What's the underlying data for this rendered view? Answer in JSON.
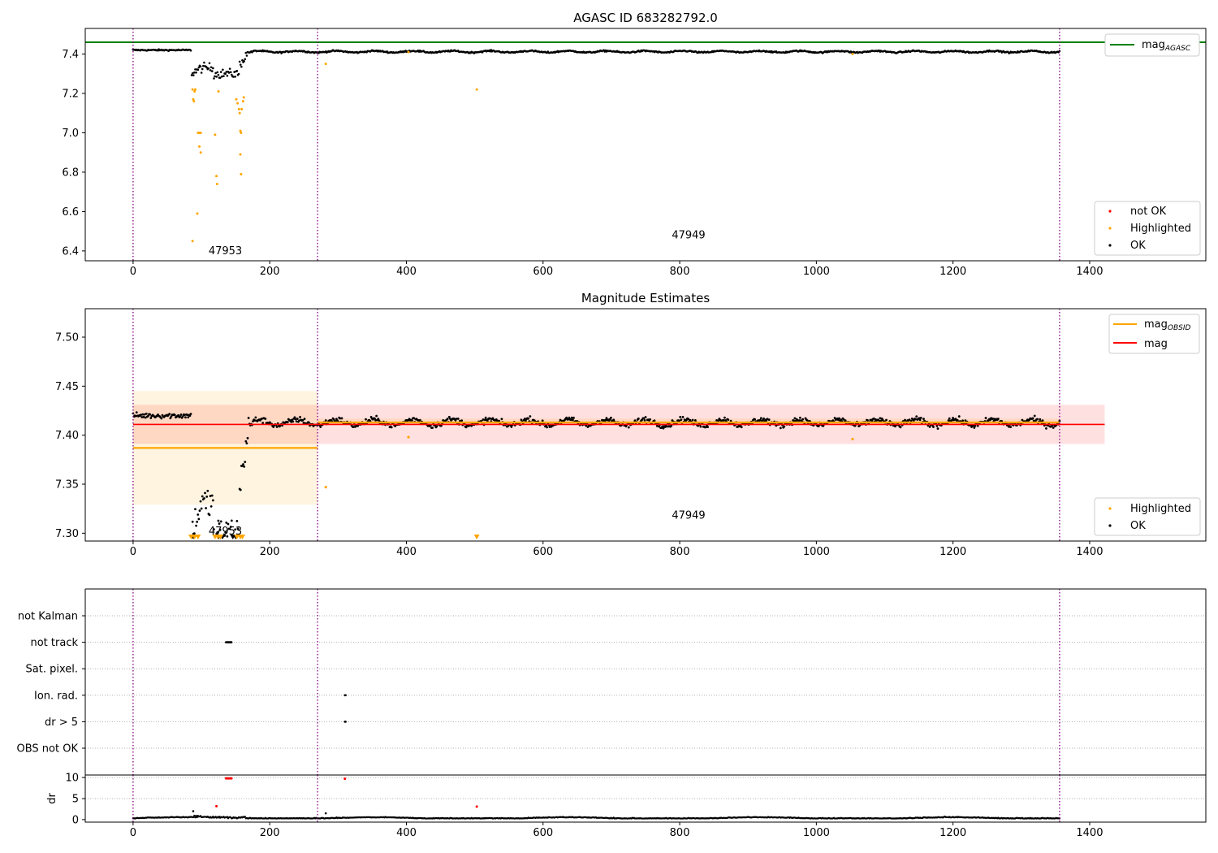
{
  "chart_data": [
    {
      "type": "scatter",
      "title": "AGASC ID 683282792.0",
      "xlim": [
        -70,
        1570
      ],
      "ylim": [
        6.35,
        7.53
      ],
      "xticks": [
        0,
        200,
        400,
        600,
        800,
        1000,
        1200,
        1400
      ],
      "yticks": [
        6.4,
        6.6,
        6.8,
        7.0,
        7.2,
        7.4
      ],
      "ytick_labels": [
        "6.4",
        "6.6",
        "6.8",
        "7.0",
        "7.2",
        "7.4"
      ],
      "obsid_bounds": [
        0,
        270,
        1356
      ],
      "obsid_labels": [
        {
          "text": "47953",
          "x": 135,
          "y": 6.4
        },
        {
          "text": "47949",
          "x": 813,
          "y": 6.48
        }
      ],
      "mag_agasc_line": 7.46,
      "highlighted_points": [
        [
          87,
          7.22
        ],
        [
          88,
          7.17
        ],
        [
          89,
          7.16
        ],
        [
          90,
          7.21
        ],
        [
          91,
          7.22
        ],
        [
          95,
          7.0
        ],
        [
          97,
          7.0
        ],
        [
          99,
          7.0
        ],
        [
          97,
          6.93
        ],
        [
          99,
          6.9
        ],
        [
          94,
          6.59
        ],
        [
          87,
          6.45
        ],
        [
          120,
          6.99
        ],
        [
          122,
          6.78
        ],
        [
          123,
          6.74
        ],
        [
          125,
          7.21
        ],
        [
          151,
          7.17
        ],
        [
          153,
          7.15
        ],
        [
          155,
          7.12
        ],
        [
          156,
          7.1
        ],
        [
          157,
          7.01
        ],
        [
          158,
          7.0
        ],
        [
          157,
          6.89
        ],
        [
          158,
          6.79
        ],
        [
          159,
          7.12
        ],
        [
          161,
          7.16
        ],
        [
          162,
          7.18
        ],
        [
          282,
          7.35
        ],
        [
          503,
          7.22
        ],
        [
          403,
          7.41
        ],
        [
          1053,
          7.4
        ]
      ],
      "ok_points_desc": "dense trace near 7.41 with dip to 7.24-7.37 around x=85-165",
      "legend_lines": [
        {
          "name": "mag_AGASC",
          "color": "#008000"
        }
      ],
      "legend_points": [
        {
          "name": "not OK",
          "color": "#ff0000"
        },
        {
          "name": "Highlighted",
          "color": "#ffa500"
        },
        {
          "name": "OK",
          "color": "#000000"
        }
      ]
    },
    {
      "type": "scatter",
      "title": "Magnitude Estimates",
      "xlim": [
        -70,
        1570
      ],
      "ylim": [
        7.292,
        7.529
      ],
      "xticks": [
        0,
        200,
        400,
        600,
        800,
        1000,
        1200,
        1400
      ],
      "yticks": [
        7.3,
        7.35,
        7.4,
        7.45,
        7.5
      ],
      "ytick_labels": [
        "7.30",
        "7.35",
        "7.40",
        "7.45",
        "7.50"
      ],
      "obsid_bounds": [
        0,
        270,
        1356
      ],
      "obsid_labels": [
        {
          "text": "47953",
          "x": 135,
          "y": 7.302
        },
        {
          "text": "47949",
          "x": 813,
          "y": 7.318
        }
      ],
      "mag": 7.411,
      "mag_band": [
        7.391,
        7.431
      ],
      "mag_x_range": [
        0,
        1422
      ],
      "obsid_mags": [
        {
          "x0": 0,
          "x1": 270,
          "mag": 7.387,
          "band": [
            7.329,
            7.445
          ]
        },
        {
          "x0": 270,
          "x1": 1356,
          "mag": 7.413,
          "band": [
            7.41,
            7.417
          ]
        }
      ],
      "highlighted_points": [
        [
          282,
          7.347
        ],
        [
          403,
          7.398
        ],
        [
          1053,
          7.396
        ]
      ],
      "highlighted_offscale_x": [
        85,
        90,
        95,
        120,
        124,
        128,
        152,
        157,
        160,
        503
      ],
      "ok_offscale_x": [
        88,
        125,
        128,
        131,
        146,
        150
      ],
      "legend_lines": [
        {
          "name": "mag_OBSID",
          "color": "#ffa500"
        },
        {
          "name": "mag",
          "color": "#ff0000"
        }
      ],
      "legend_points": [
        {
          "name": "Highlighted",
          "color": "#ffa500"
        },
        {
          "name": "OK",
          "color": "#000000"
        }
      ]
    },
    {
      "type": "scatter",
      "title": "",
      "xlim": [
        -70,
        1570
      ],
      "xticks": [
        0,
        200,
        400,
        600,
        800,
        1000,
        1200,
        1400
      ],
      "flag_labels": [
        "not Kalman",
        "not track",
        "Sat. pixel.",
        "Ion. rad.",
        "dr > 5",
        "OBS not OK"
      ],
      "flag_points": [
        {
          "flag": "not track",
          "x_range": [
            136,
            144
          ]
        },
        {
          "flag": "Ion. rad.",
          "x_range": [
            310,
            311
          ]
        },
        {
          "flag": "dr > 5",
          "x_range": [
            310,
            311
          ]
        }
      ],
      "obsid_bounds": [
        0,
        270,
        1356
      ]
    },
    {
      "type": "scatter",
      "title": "",
      "ylabel": "dr",
      "xlim": [
        -70,
        1570
      ],
      "ylim": [
        -0.6,
        10.6
      ],
      "xticks": [
        0,
        200,
        400,
        600,
        800,
        1000,
        1200,
        1400
      ],
      "yticks": [
        0,
        5,
        10
      ],
      "ytick_labels": [
        "0",
        "5",
        "10"
      ],
      "not_ok_points": [
        [
          122,
          3.2
        ],
        [
          503,
          3.1
        ],
        [
          136,
          9.8
        ],
        [
          138,
          9.8
        ],
        [
          140,
          9.8
        ],
        [
          142,
          9.8
        ],
        [
          144,
          9.8
        ],
        [
          310,
          9.7
        ]
      ],
      "ok_points_desc": "trace between 0 and 1 with small bumps",
      "obsid_bounds": [
        0,
        270,
        1356
      ]
    }
  ]
}
